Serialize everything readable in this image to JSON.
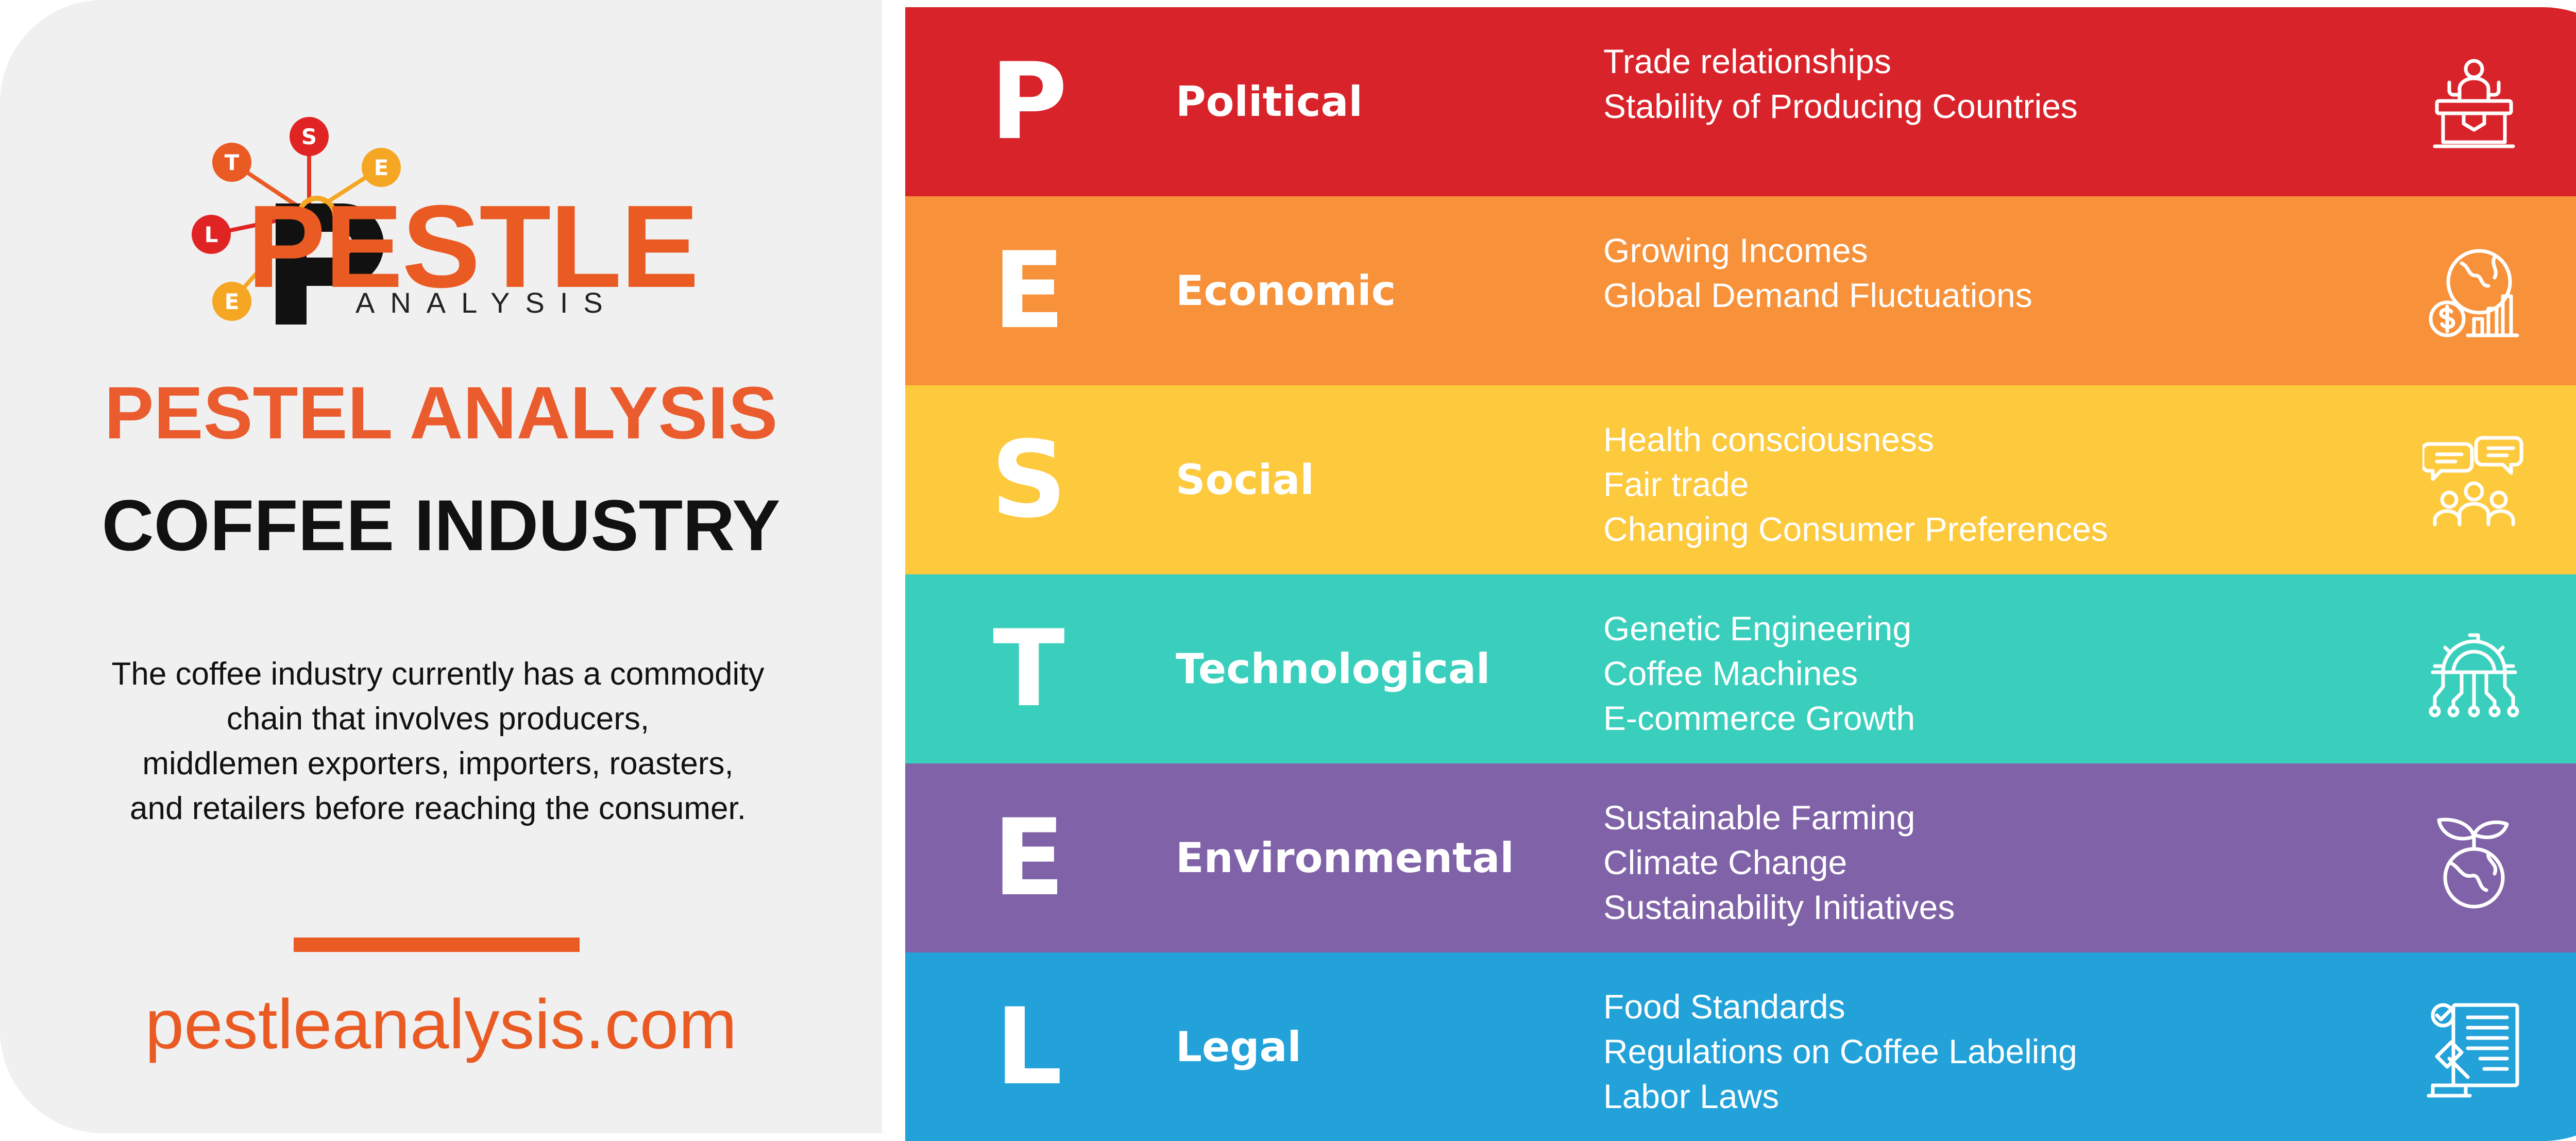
{
  "brand": {
    "logo_word": "PESTLE",
    "logo_sub": "ANALYSIS",
    "logo_letters": [
      "T",
      "S",
      "E",
      "L",
      "E"
    ],
    "accent_color": "#ea5b24"
  },
  "left": {
    "title": "PESTEL ANALYSIS",
    "subtitle": "COFFEE INDUSTRY",
    "description_lines": [
      "The coffee industry currently has a commodity",
      "chain that involves producers,",
      "middlemen exporters, importers, roasters,",
      "and retailers before reaching the consumer."
    ],
    "website": "pestleanalysis.com"
  },
  "factors": [
    {
      "letter": "P",
      "name": "Political",
      "color": "#d9232a",
      "icon": "podium-speaker-icon",
      "items": [
        "Trade relationships",
        "Stability of Producing Countries"
      ]
    },
    {
      "letter": "E",
      "name": "Economic",
      "color": "#f7913a",
      "icon": "globe-dollar-chart-icon",
      "items": [
        "Growing Incomes",
        "Global Demand Fluctuations"
      ]
    },
    {
      "letter": "S",
      "name": "Social",
      "color": "#fdc93d",
      "icon": "people-chat-icon",
      "items": [
        "Health consciousness",
        "Fair trade",
        "Changing Consumer Preferences"
      ]
    },
    {
      "letter": "T",
      "name": "Technological",
      "color": "#3acfbd",
      "icon": "gear-circuit-icon",
      "items": [
        "Genetic Engineering",
        "Coffee Machines",
        "E-commerce Growth"
      ]
    },
    {
      "letter": "E",
      "name": "Environmental",
      "color": "#8062a8",
      "icon": "globe-leaves-icon",
      "items": [
        "Sustainable Farming",
        "Climate Change",
        "Sustainability Initiatives"
      ]
    },
    {
      "letter": "L",
      "name": "Legal",
      "color": "#22a2d9",
      "icon": "gavel-document-icon",
      "items": [
        "Food Standards",
        "Regulations on Coffee Labeling",
        "Labor Laws"
      ]
    }
  ]
}
